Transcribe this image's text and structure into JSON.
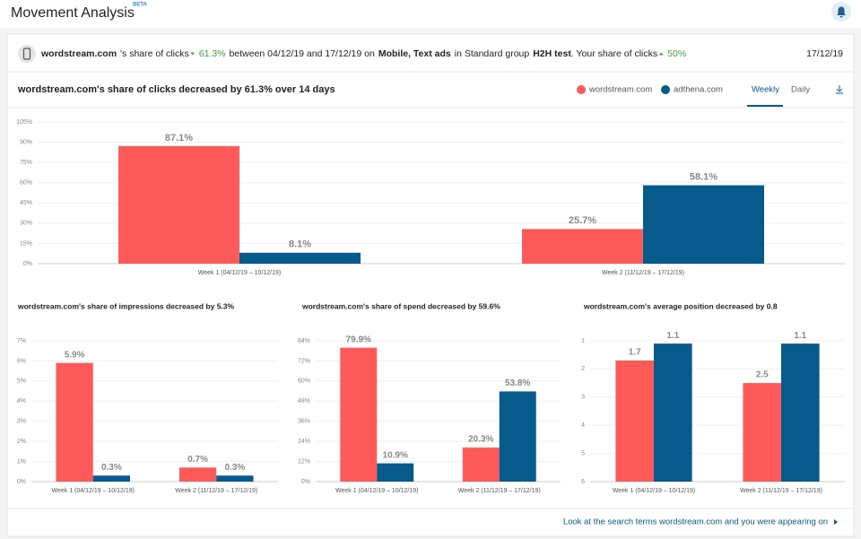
{
  "header": {
    "title": "Movement Analysis",
    "badge": "BETA"
  },
  "banner": {
    "parts": [
      "wordstream.com",
      "'s share of clicks",
      "61.3%",
      "between 04/12/19 and 17/12/19 on",
      "Mobile, Text ads",
      "in Standard group",
      "H2H test",
      ". Your share of clicks",
      "50%"
    ],
    "date": "17/12/19"
  },
  "tabs": [
    "Weekly",
    "Daily"
  ],
  "footer_link": "Look at the search terms wordstream.com and you were appearing on",
  "chart_data": [
    {
      "type": "bar",
      "title": "wordstream.com's share of clicks decreased by 61.3% over 14 days",
      "categories": [
        "Week 1 (04/12/19 – 10/12/19)",
        "Week 2 (11/12/19 – 17/12/19)"
      ],
      "series": [
        {
          "name": "wordstream.com",
          "color": "#fe5a5a",
          "values": [
            87.1,
            25.7
          ],
          "value_labels": [
            "87.1%",
            "25.7%"
          ]
        },
        {
          "name": "adthena.com",
          "color": "#065a8c",
          "values": [
            8.1,
            58.1
          ],
          "value_labels": [
            "8.1%",
            "58.1%"
          ]
        }
      ],
      "ylim": [
        0,
        105
      ],
      "yticks": [
        {
          "value": 0,
          "label": "0%"
        },
        {
          "value": 15,
          "label": "15%"
        },
        {
          "value": 30,
          "label": "30%"
        },
        {
          "value": 45,
          "label": "45%"
        },
        {
          "value": 60,
          "label": "60%"
        },
        {
          "value": 75,
          "label": "75%"
        },
        {
          "value": 90,
          "label": "90%"
        },
        {
          "value": 105,
          "label": "105%"
        }
      ],
      "grid": true
    },
    {
      "type": "bar",
      "title": "wordstream.com's share of impressions decreased by 5.3%",
      "categories": [
        "Week 1 (04/12/19 – 10/12/19)",
        "Week 2 (11/12/19 – 17/12/19)"
      ],
      "series": [
        {
          "color": "#fe5a5a",
          "values": [
            5.9,
            0.7
          ],
          "value_labels": [
            "5.9%",
            "0.7%"
          ]
        },
        {
          "color": "#065a8c",
          "values": [
            0.3,
            0.3
          ],
          "value_labels": [
            "0.3%",
            "0.3%"
          ]
        }
      ],
      "ylim": [
        0,
        7
      ],
      "yticks": [
        {
          "value": 0,
          "label": "0%"
        },
        {
          "value": 1,
          "label": "1%"
        },
        {
          "value": 2,
          "label": "2%"
        },
        {
          "value": 3,
          "label": "3%"
        },
        {
          "value": 4,
          "label": "4%"
        },
        {
          "value": 5,
          "label": "5%"
        },
        {
          "value": 6,
          "label": "6%"
        },
        {
          "value": 7,
          "label": "7%"
        }
      ],
      "grid": true
    },
    {
      "type": "bar",
      "title": "wordstream.com's share of spend decreased by 59.6%",
      "categories": [
        "Week 1 (04/12/19 – 10/12/19)",
        "Week 2 (11/12/19 – 17/12/19)"
      ],
      "series": [
        {
          "color": "#fe5a5a",
          "values": [
            79.9,
            20.3
          ],
          "value_labels": [
            "79.9%",
            "20.3%"
          ]
        },
        {
          "color": "#065a8c",
          "values": [
            10.9,
            53.8
          ],
          "value_labels": [
            "10.9%",
            "53.8%"
          ]
        }
      ],
      "ylim": [
        0,
        84
      ],
      "yticks": [
        {
          "value": 0,
          "label": "0%"
        },
        {
          "value": 12,
          "label": "12%"
        },
        {
          "value": 24,
          "label": "24%"
        },
        {
          "value": 36,
          "label": "36%"
        },
        {
          "value": 48,
          "label": "48%"
        },
        {
          "value": 60,
          "label": "60%"
        },
        {
          "value": 72,
          "label": "72%"
        },
        {
          "value": 84,
          "label": "84%"
        }
      ],
      "grid": true
    },
    {
      "type": "bar",
      "title": "wordstream.com's average position decreased by 0.8",
      "categories": [
        "Week 1 (04/12/19 – 10/12/19)",
        "Week 2 (11/12/19 – 17/12/19)"
      ],
      "series": [
        {
          "color": "#fe5a5a",
          "values": [
            1.7,
            2.5
          ]
        },
        {
          "color": "#065a8c",
          "values": [
            1.1,
            1.1
          ]
        }
      ],
      "ylim": [
        6,
        1
      ],
      "yticks": [
        1,
        2,
        3,
        4,
        5,
        6
      ],
      "grid": true
    }
  ]
}
